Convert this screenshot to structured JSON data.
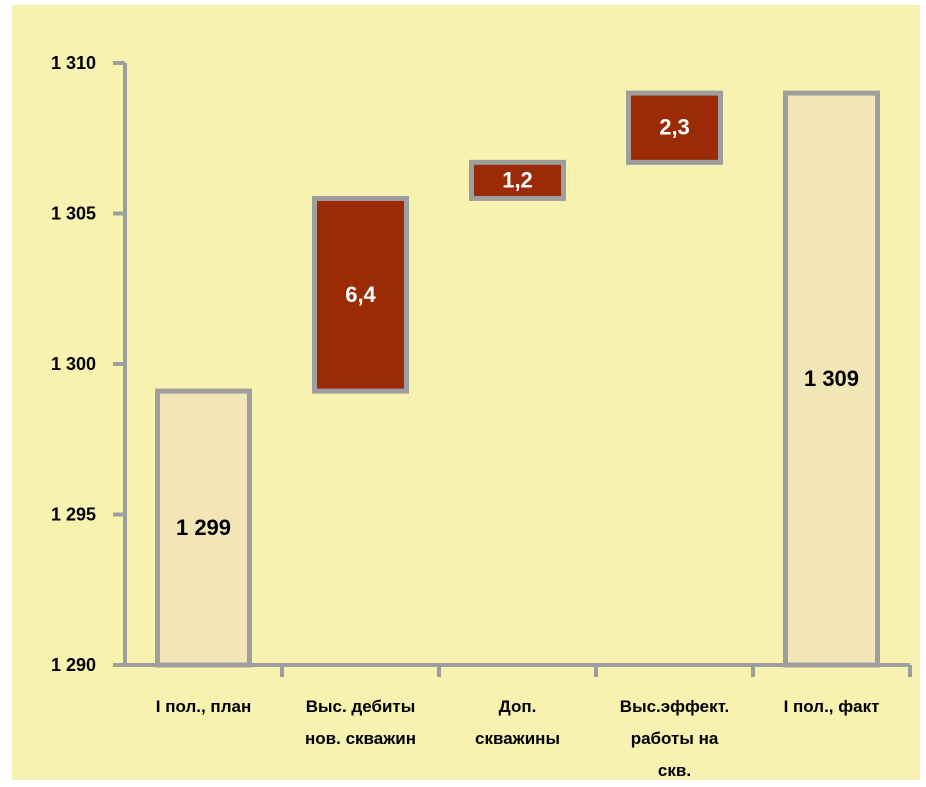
{
  "chart_data": {
    "type": "bar",
    "subtype": "waterfall",
    "categories": [
      [
        "I пол., план"
      ],
      [
        "Выс. дебиты",
        "нов. скважин"
      ],
      [
        "Доп.",
        "скважины"
      ],
      [
        "Выс.эффект.",
        "работы на",
        "скв."
      ],
      [
        "I пол., факт"
      ]
    ],
    "bars": [
      {
        "base": 1290,
        "value": 1299.1,
        "label": "1 299",
        "kind": "total"
      },
      {
        "base": 1299.1,
        "value": 1305.5,
        "label": "6,4",
        "kind": "delta"
      },
      {
        "base": 1305.5,
        "value": 1306.7,
        "label": "1,2",
        "kind": "delta"
      },
      {
        "base": 1306.7,
        "value": 1309.0,
        "label": "2,3",
        "kind": "delta"
      },
      {
        "base": 1290,
        "value": 1309.0,
        "label": "1 309",
        "kind": "total"
      }
    ],
    "yticks": [
      1290,
      1295,
      1300,
      1305,
      1310
    ],
    "ytick_labels": [
      "1 290",
      "1 295",
      "1 300",
      "1 305",
      "1 310"
    ],
    "ylim": [
      1290,
      1310
    ],
    "grid": false,
    "legend": "none",
    "colors": {
      "background": "#f8f2b0",
      "total_fill": "#f2e6b6",
      "delta_fill": "#9b2a06",
      "bar_border": "#9e9e9e",
      "axis": "#9e9e9e",
      "total_label": "#000000",
      "delta_label": "#ffffff"
    }
  }
}
